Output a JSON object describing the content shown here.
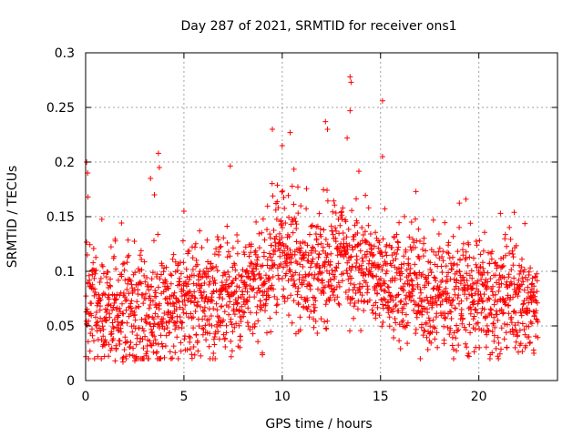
{
  "chart_data": {
    "type": "scatter",
    "title": "Day 287 of 2021, SRMTID for receiver ons1",
    "xlabel": "GPS time / hours",
    "ylabel": "SRMTID / TECUs",
    "xlim": [
      0,
      24
    ],
    "ylim": [
      0,
      0.3
    ],
    "xticks": [
      0,
      5,
      10,
      15,
      20
    ],
    "xtick_labels": [
      "0",
      "5",
      "10",
      "15",
      "20"
    ],
    "yticks": [
      0,
      0.05,
      0.1,
      0.15,
      0.2,
      0.25,
      0.3
    ],
    "ytick_labels": [
      "0",
      "0.05",
      "0.1",
      "0.15",
      "0.2",
      "0.25",
      "0.3"
    ],
    "grid": true,
    "marker": "plus",
    "marker_color": "#ff0000",
    "x_sampled_range": [
      0,
      23
    ],
    "baseline_profile": [
      [
        0,
        0.068
      ],
      [
        1,
        0.062
      ],
      [
        2,
        0.06
      ],
      [
        3,
        0.062
      ],
      [
        4,
        0.068
      ],
      [
        5,
        0.07
      ],
      [
        6,
        0.074
      ],
      [
        7,
        0.078
      ],
      [
        8,
        0.08
      ],
      [
        9,
        0.084
      ],
      [
        9.5,
        0.11
      ],
      [
        10,
        0.118
      ],
      [
        11,
        0.1
      ],
      [
        12,
        0.1
      ],
      [
        13,
        0.118
      ],
      [
        14,
        0.108
      ],
      [
        15,
        0.09
      ],
      [
        16,
        0.086
      ],
      [
        17,
        0.084
      ],
      [
        18,
        0.082
      ],
      [
        19,
        0.082
      ],
      [
        20,
        0.078
      ],
      [
        21,
        0.074
      ],
      [
        22,
        0.074
      ],
      [
        23,
        0.068
      ]
    ],
    "peak_points": [
      {
        "x": 0.05,
        "y": 0.2
      },
      {
        "x": 0.1,
        "y": 0.19
      },
      {
        "x": 0.12,
        "y": 0.168
      },
      {
        "x": 3.3,
        "y": 0.185
      },
      {
        "x": 3.5,
        "y": 0.17
      },
      {
        "x": 3.7,
        "y": 0.208
      },
      {
        "x": 3.75,
        "y": 0.195
      },
      {
        "x": 5,
        "y": 0.155
      },
      {
        "x": 9.5,
        "y": 0.23
      },
      {
        "x": 10,
        "y": 0.215
      },
      {
        "x": 10.4,
        "y": 0.227
      },
      {
        "x": 12.2,
        "y": 0.237
      },
      {
        "x": 12.3,
        "y": 0.23
      },
      {
        "x": 13.3,
        "y": 0.222
      },
      {
        "x": 13.45,
        "y": 0.278
      },
      {
        "x": 13.5,
        "y": 0.273
      },
      {
        "x": 13.45,
        "y": 0.247
      },
      {
        "x": 15.1,
        "y": 0.256
      },
      {
        "x": 15.1,
        "y": 0.205
      },
      {
        "x": 16.8,
        "y": 0.173
      },
      {
        "x": 21.1,
        "y": 0.153
      },
      {
        "x": 21.8,
        "y": 0.154
      }
    ],
    "low_points": [
      {
        "x": 1.5,
        "y": 0.018
      },
      {
        "x": 1.9,
        "y": 0.017
      },
      {
        "x": 2.5,
        "y": 0.018
      },
      {
        "x": 3.6,
        "y": 0.025
      },
      {
        "x": 6.5,
        "y": 0.025
      },
      {
        "x": 19.5,
        "y": 0.022
      },
      {
        "x": 22.8,
        "y": 0.025
      }
    ]
  }
}
